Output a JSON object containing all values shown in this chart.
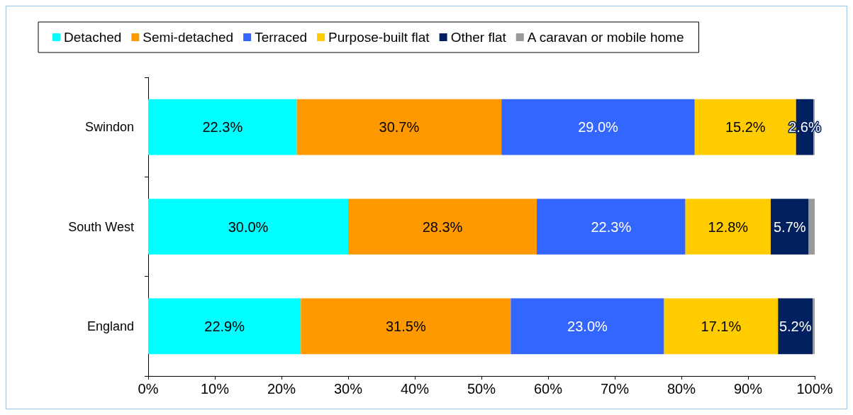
{
  "chart_data": {
    "type": "bar",
    "orientation": "horizontal",
    "stacked": true,
    "categories": [
      "Swindon",
      "South West",
      "England"
    ],
    "series": [
      {
        "name": "Detached",
        "color": "#00ffff",
        "values": [
          22.3,
          30.0,
          22.9
        ],
        "value_labels": [
          "22.3%",
          "30.0%",
          "22.9%"
        ]
      },
      {
        "name": "Semi-detached",
        "color": "#ff9900",
        "values": [
          30.7,
          28.3,
          31.5
        ],
        "value_labels": [
          "30.7%",
          "28.3%",
          "31.5%"
        ]
      },
      {
        "name": "Terraced",
        "color": "#3366ff",
        "values": [
          29.0,
          22.3,
          23.0
        ],
        "value_labels": [
          "29.0%",
          "22.3%",
          "23.0%"
        ]
      },
      {
        "name": "Purpose-built flat",
        "color": "#ffcc00",
        "values": [
          15.2,
          12.8,
          17.1
        ],
        "value_labels": [
          "15.2%",
          "12.8%",
          "17.1%"
        ]
      },
      {
        "name": "Other flat",
        "color": "#002060",
        "values": [
          2.6,
          5.7,
          5.2
        ],
        "value_labels": [
          "2.6%",
          "5.7%",
          "5.2%"
        ]
      },
      {
        "name": "A caravan or mobile home",
        "color": "#999999",
        "values": [
          0.2,
          0.9,
          0.3
        ],
        "value_labels": [
          null,
          null,
          null
        ]
      }
    ],
    "xlim": [
      0,
      100
    ],
    "xticks": [
      {
        "value": 0,
        "label": "0%"
      },
      {
        "value": 10,
        "label": "10%"
      },
      {
        "value": 20,
        "label": "20%"
      },
      {
        "value": 30,
        "label": "30%"
      },
      {
        "value": 40,
        "label": "40%"
      },
      {
        "value": 50,
        "label": "50%"
      },
      {
        "value": 60,
        "label": "60%"
      },
      {
        "value": 70,
        "label": "70%"
      },
      {
        "value": 80,
        "label": "80%"
      },
      {
        "value": 90,
        "label": "90%"
      },
      {
        "value": 100,
        "label": "100%"
      }
    ],
    "grid": false,
    "legend": "top"
  }
}
